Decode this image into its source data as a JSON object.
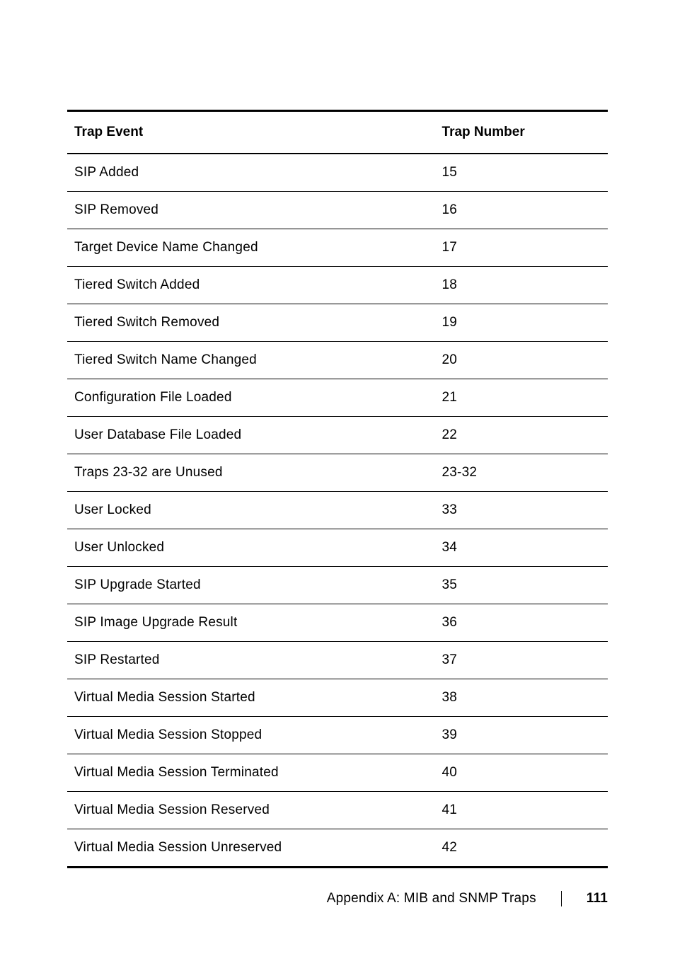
{
  "table": {
    "columns": [
      "Trap Event",
      "Trap Number"
    ],
    "rows": [
      {
        "event": "SIP Added",
        "number": "15"
      },
      {
        "event": "SIP Removed",
        "number": "16"
      },
      {
        "event": "Target Device Name Changed",
        "number": "17"
      },
      {
        "event": "Tiered Switch Added",
        "number": "18"
      },
      {
        "event": "Tiered Switch Removed",
        "number": "19"
      },
      {
        "event": "Tiered Switch Name Changed",
        "number": "20"
      },
      {
        "event": "Configuration File Loaded",
        "number": "21"
      },
      {
        "event": "User Database File Loaded",
        "number": "22"
      },
      {
        "event": "Traps 23-32 are Unused",
        "number": "23-32"
      },
      {
        "event": "User Locked",
        "number": "33"
      },
      {
        "event": "User Unlocked",
        "number": "34"
      },
      {
        "event": "SIP Upgrade Started",
        "number": "35"
      },
      {
        "event": "SIP Image Upgrade Result",
        "number": "36"
      },
      {
        "event": "SIP Restarted",
        "number": "37"
      },
      {
        "event": "Virtual Media Session Started",
        "number": "38"
      },
      {
        "event": "Virtual Media Session Stopped",
        "number": "39"
      },
      {
        "event": "Virtual Media Session Terminated",
        "number": "40"
      },
      {
        "event": "Virtual Media Session Reserved",
        "number": "41"
      },
      {
        "event": "Virtual Media Session Unreserved",
        "number": "42"
      }
    ]
  },
  "footer": {
    "section": "Appendix A: MIB and SNMP Traps",
    "page": "111"
  }
}
